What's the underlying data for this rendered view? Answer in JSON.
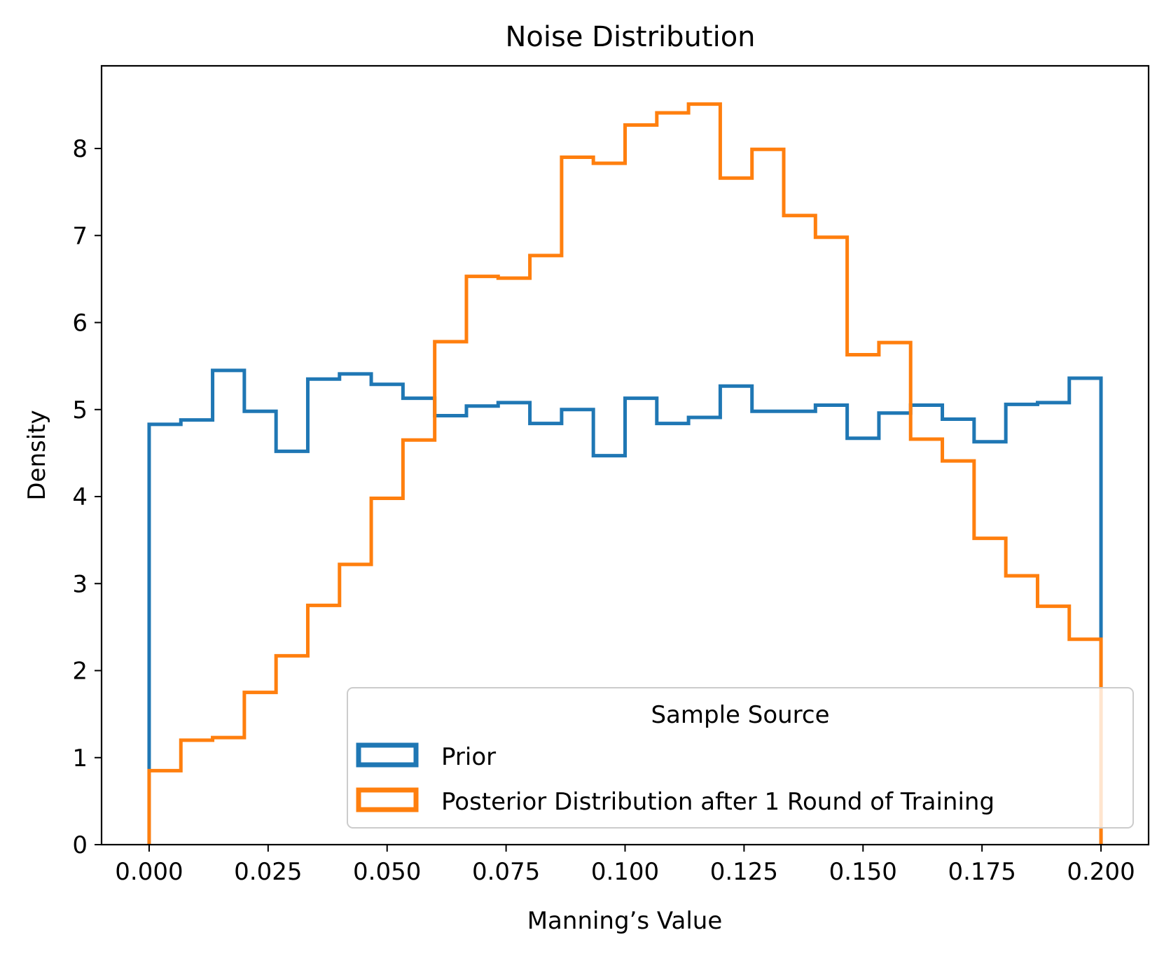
{
  "chart_data": {
    "type": "histogram",
    "title": "Noise Distribution",
    "xlabel": "Manning’s Value",
    "ylabel": "Density",
    "xlim": [
      -0.01,
      0.21
    ],
    "ylim": [
      0,
      8.95
    ],
    "xticks": [
      0.0,
      0.025,
      0.05,
      0.075,
      0.1,
      0.125,
      0.15,
      0.175,
      0.2
    ],
    "xtick_labels": [
      "0.000",
      "0.025",
      "0.050",
      "0.075",
      "0.100",
      "0.125",
      "0.150",
      "0.175",
      "0.200"
    ],
    "yticks": [
      0,
      1,
      2,
      3,
      4,
      5,
      6,
      7,
      8
    ],
    "ytick_labels": [
      "0",
      "1",
      "2",
      "3",
      "4",
      "5",
      "6",
      "7",
      "8"
    ],
    "grid": false,
    "bins": 30,
    "bin_range": [
      0,
      0.2
    ],
    "legend": {
      "title": "Sample Source",
      "position": "lower right"
    },
    "series": [
      {
        "name": "Prior",
        "color": "#1f77b4",
        "values": [
          4.83,
          4.88,
          5.45,
          4.98,
          4.52,
          5.35,
          5.41,
          5.29,
          5.13,
          4.93,
          5.04,
          5.08,
          4.84,
          5.0,
          4.47,
          5.13,
          4.84,
          4.91,
          5.27,
          4.98,
          4.98,
          5.05,
          4.67,
          4.96,
          5.05,
          4.89,
          4.63,
          5.06,
          5.08,
          5.36
        ]
      },
      {
        "name": "Posterior Distribution after 1 Round of Training",
        "color": "#ff7f0e",
        "values": [
          0.85,
          1.2,
          1.23,
          1.75,
          2.17,
          2.75,
          3.22,
          3.98,
          4.65,
          5.78,
          6.53,
          6.51,
          6.77,
          7.9,
          7.83,
          8.27,
          8.41,
          8.51,
          7.66,
          7.99,
          7.23,
          6.98,
          5.63,
          5.77,
          4.66,
          4.41,
          3.52,
          3.09,
          2.74,
          2.36
        ]
      }
    ]
  }
}
